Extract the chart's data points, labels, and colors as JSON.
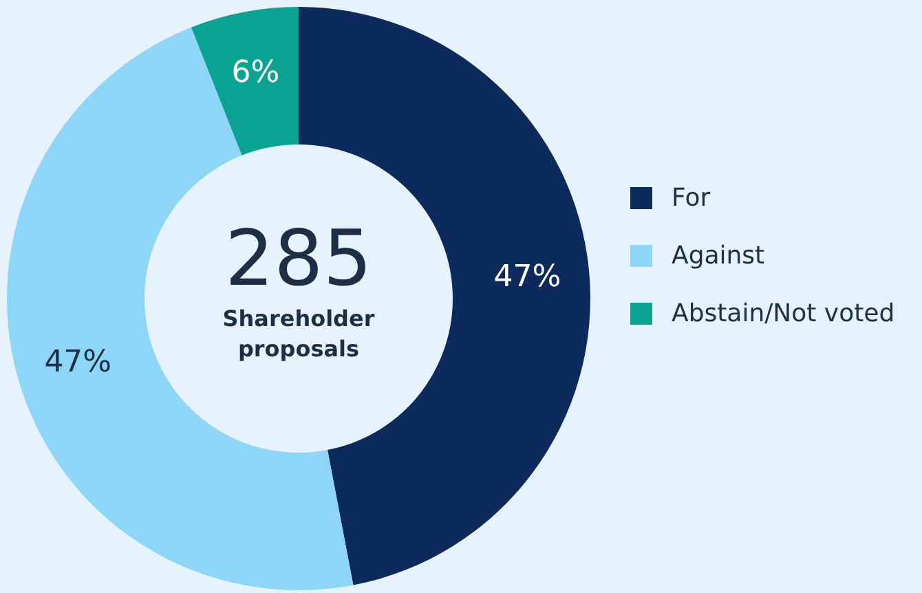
{
  "chart_data": {
    "type": "donut",
    "categories": [
      "For",
      "Against",
      "Abstain/Not voted"
    ],
    "values": [
      47,
      47,
      6
    ],
    "colors": [
      "#0c2a5b",
      "#8dd6f7",
      "#0aa391"
    ],
    "value_labels": [
      "47%",
      "47%",
      "6%"
    ],
    "legend": "right",
    "annotations": [
      "285",
      "Shareholder proposals"
    ]
  }
}
